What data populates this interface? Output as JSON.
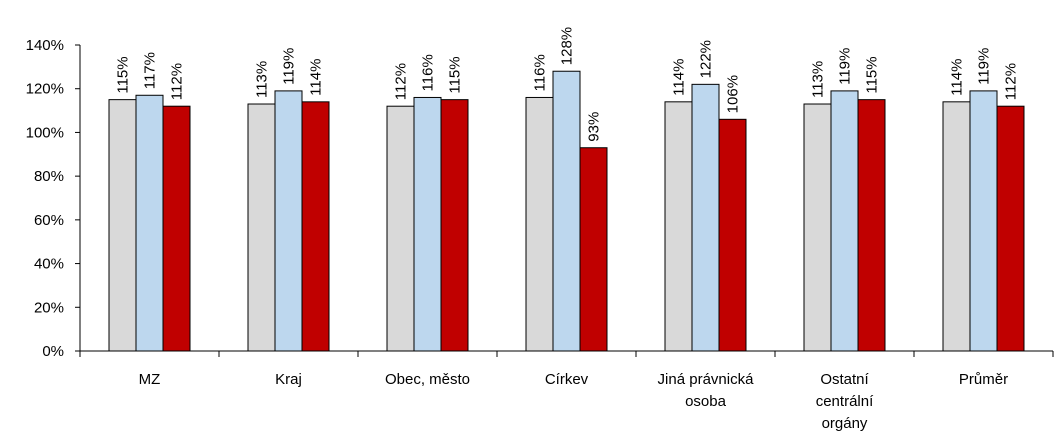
{
  "chart_data": {
    "type": "bar",
    "categories": [
      [
        "MZ"
      ],
      [
        "Kraj"
      ],
      [
        "Obec, město"
      ],
      [
        "Církev"
      ],
      [
        "Jiná právnická",
        "osoba"
      ],
      [
        "Ostatní",
        "centrální",
        "orgány"
      ],
      [
        "Průměr"
      ]
    ],
    "series": [
      {
        "color": "#d9d9d9",
        "values": [
          115,
          113,
          112,
          116,
          114,
          113,
          114
        ],
        "labels": [
          "115%",
          "113%",
          "112%",
          "116%",
          "114%",
          "113%",
          "114%"
        ]
      },
      {
        "color": "#bdd7ee",
        "values": [
          117,
          119,
          116,
          128,
          122,
          119,
          119
        ],
        "labels": [
          "117%",
          "119%",
          "116%",
          "128%",
          "122%",
          "119%",
          "119%"
        ]
      },
      {
        "color": "#c00000",
        "values": [
          112,
          114,
          115,
          93,
          106,
          115,
          112
        ],
        "labels": [
          "112%",
          "114%",
          "115%",
          "93%",
          "106%",
          "115%",
          "112%"
        ]
      }
    ],
    "y_ticks": [
      "0%",
      "20%",
      "40%",
      "60%",
      "80%",
      "100%",
      "120%",
      "140%"
    ],
    "ylim": [
      0,
      140
    ],
    "grid": false,
    "legend": "none",
    "title": "",
    "xlabel": "",
    "ylabel": ""
  }
}
